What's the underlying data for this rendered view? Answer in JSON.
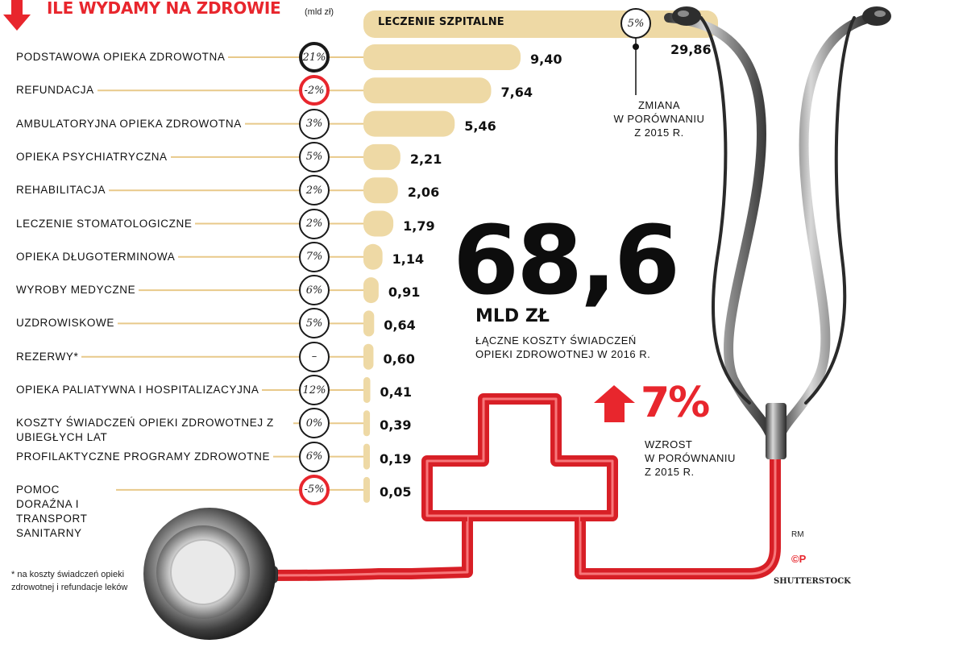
{
  "header": {
    "title": "ILE WYDAMY NA ZDROWIE",
    "unit": "(mld zł)"
  },
  "chart_data": {
    "type": "bar",
    "title": "ILE WYDAMY NA ZDROWIE",
    "unit": "(mld zł)",
    "categories": [
      "LECZENIE SZPITALNE",
      "PODSTAWOWA OPIEKA ZDROWOTNA",
      "REFUNDACJA",
      "AMBULATORYJNA OPIEKA ZDROWOTNA",
      "OPIEKA PSYCHIATRYCZNA",
      "REHABILITACJA",
      "LECZENIE STOMATOLOGICZNE",
      "OPIEKA DŁUGOTERMINOWA",
      "WYROBY MEDYCZNE",
      "UZDROWISKOWE",
      "REZERWY*",
      "OPIEKA PALIATYWNA I HOSPITALIZACYJNA",
      "KOSZTY ŚWIADCZEŃ OPIEKI ZDROWOTNEJ Z UBIEGŁYCH LAT",
      "PROFILAKTYCZNE PROGRAMY ZDROWOTNE",
      "POMOC DORAŹNA I TRANSPORT SANITARNY"
    ],
    "values": [
      29.86,
      9.4,
      7.64,
      5.46,
      2.21,
      2.06,
      1.79,
      1.14,
      0.91,
      0.64,
      0.6,
      0.41,
      0.39,
      0.19,
      0.05
    ],
    "value_labels": [
      "29,86",
      "9,40",
      "7,64",
      "5,46",
      "2,21",
      "2,06",
      "1,79",
      "1,14",
      "0,91",
      "0,64",
      "0,60",
      "0,41",
      "0,39",
      "0,19",
      "0,05"
    ],
    "changes": [
      "5%",
      "21%",
      "-2%",
      "3%",
      "5%",
      "2%",
      "2%",
      "7%",
      "6%",
      "5%",
      "–",
      "12%",
      "0%",
      "6%",
      "-5%"
    ],
    "change_styles": [
      "normal",
      "thick",
      "red",
      "normal",
      "normal",
      "normal",
      "normal",
      "normal",
      "normal",
      "normal",
      "normal",
      "normal",
      "normal",
      "normal",
      "red"
    ],
    "xlim": [
      0,
      29.86
    ],
    "grid": false,
    "legend": "none"
  },
  "change_note": [
    "ZMIANA",
    "W PORÓWNANIU",
    "Z 2015 R."
  ],
  "total": {
    "value": "68,6",
    "unit": "MLD ZŁ",
    "caption": [
      "ŁĄCZNE KOSZTY ŚWIADCZEŃ",
      "OPIEKI ZDROWOTNEJ W 2016 R."
    ]
  },
  "growth": {
    "value": "7%",
    "caption": [
      "WZROST",
      "W PORÓWNANIU",
      "Z 2015 R."
    ]
  },
  "footnote": "* na koszty świadczeń opieki zdrowotnej i refundacje leków",
  "credits": {
    "rm": "RM",
    "cp": "©P",
    "source": "SHUTTERSTOCK"
  },
  "colors": {
    "bar": "#eed9a5",
    "accent_red": "#e8262d",
    "leader": "#e8c98a"
  }
}
